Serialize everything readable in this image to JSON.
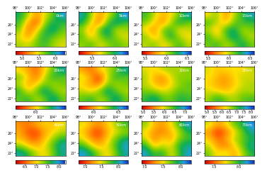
{
  "chart_data": [
    {
      "type": "heatmap",
      "title": "0km",
      "xlim": [
        98,
        106
      ],
      "ylim": [
        21.5,
        28.5
      ],
      "xticks": [
        {
          "value": 98,
          "label": "98°"
        },
        {
          "value": 100,
          "label": "100°"
        },
        {
          "value": 102,
          "label": "102°"
        },
        {
          "value": 104,
          "label": "104°"
        },
        {
          "value": 106,
          "label": "106°"
        }
      ],
      "yticks": [
        {
          "value": 22,
          "label": "22°"
        },
        {
          "value": 24,
          "label": "24°"
        },
        {
          "value": 26,
          "label": "26°"
        }
      ],
      "tick_labels": true,
      "cells": [
        [
          5.6,
          5.5,
          5.7,
          5.8,
          5.6,
          5.5
        ],
        [
          5.5,
          5.2,
          5.6,
          5.9,
          5.7,
          5.6
        ],
        [
          5.7,
          5.1,
          5.4,
          5.8,
          6.0,
          5.7
        ],
        [
          5.8,
          5.3,
          5.0,
          5.6,
          5.9,
          5.8
        ],
        [
          5.9,
          5.6,
          5.2,
          5.5,
          5.7,
          6.1
        ]
      ],
      "colorbar_range": [
        4.8,
        6.3
      ],
      "colorbar_ticks": [
        {
          "value": 5,
          "label": "5.0"
        },
        5.5,
        {
          "value": 6,
          "label": "6.0"
        }
      ]
    },
    {
      "type": "heatmap",
      "title": "5km",
      "xlim": [
        98,
        106
      ],
      "ylim": [
        21.5,
        28.5
      ],
      "xticks": [
        {
          "value": 98,
          "label": "98°"
        },
        {
          "value": 100,
          "label": "100°"
        },
        {
          "value": 102,
          "label": "102°"
        },
        {
          "value": 104,
          "label": "104°"
        },
        {
          "value": 106,
          "label": "106°"
        }
      ],
      "yticks": [
        {
          "value": 22,
          "label": "22°"
        },
        {
          "value": 24,
          "label": "24°"
        },
        {
          "value": 26,
          "label": "26°"
        }
      ],
      "tick_labels": true,
      "cells": [
        [
          5.8,
          5.9,
          5.7,
          5.8,
          5.9,
          5.8
        ],
        [
          5.9,
          5.6,
          5.8,
          6.0,
          5.8,
          5.7
        ],
        [
          5.8,
          5.5,
          5.9,
          6.1,
          5.7,
          5.8
        ],
        [
          6.0,
          5.7,
          5.4,
          5.9,
          6.1,
          5.9
        ],
        [
          6.1,
          5.8,
          5.5,
          5.7,
          5.9,
          6.2
        ]
      ],
      "colorbar_range": [
        5.2,
        6.3
      ],
      "colorbar_ticks": [
        5.5,
        {
          "value": 6,
          "label": "6.0"
        }
      ]
    },
    {
      "type": "heatmap",
      "title": "10km",
      "xlim": [
        98,
        106
      ],
      "ylim": [
        21.5,
        28.5
      ],
      "xticks": [
        {
          "value": 98,
          "label": "98°"
        },
        {
          "value": 100,
          "label": "100°"
        },
        {
          "value": 102,
          "label": "102°"
        },
        {
          "value": 104,
          "label": "104°"
        },
        {
          "value": 106,
          "label": "106°"
        }
      ],
      "yticks": [
        {
          "value": 22,
          "label": "22°"
        },
        {
          "value": 24,
          "label": "24°"
        },
        {
          "value": 26,
          "label": "26°"
        }
      ],
      "tick_labels": true,
      "cells": [
        [
          6.0,
          6.1,
          5.9,
          6.0,
          6.2,
          6.0
        ],
        [
          6.1,
          5.8,
          6.0,
          6.3,
          6.0,
          5.9
        ],
        [
          5.9,
          5.7,
          6.1,
          6.2,
          5.9,
          6.0
        ],
        [
          6.1,
          5.9,
          5.7,
          6.0,
          6.3,
          6.1
        ],
        [
          6.2,
          6.0,
          5.8,
          5.9,
          6.1,
          6.4
        ]
      ],
      "colorbar_range": [
        5.4,
        6.6
      ],
      "colorbar_ticks": [
        5.5,
        {
          "value": 6,
          "label": "6.0"
        },
        6.5
      ]
    },
    {
      "type": "heatmap",
      "title": "15km",
      "xlim": [
        98,
        106
      ],
      "ylim": [
        21.5,
        28.5
      ],
      "xticks": [
        {
          "value": 98,
          "label": "98°"
        },
        {
          "value": 100,
          "label": "100°"
        },
        {
          "value": 102,
          "label": "102°"
        },
        {
          "value": 104,
          "label": "104°"
        },
        {
          "value": 106,
          "label": "106°"
        }
      ],
      "yticks": [
        {
          "value": 22,
          "label": "22°"
        },
        {
          "value": 24,
          "label": "24°"
        },
        {
          "value": 26,
          "label": "26°"
        }
      ],
      "tick_labels": true,
      "cells": [
        [
          6.1,
          6.2,
          6.0,
          6.1,
          6.3,
          6.1
        ],
        [
          6.2,
          5.9,
          6.1,
          6.4,
          6.1,
          6.0
        ],
        [
          6.0,
          5.8,
          6.2,
          6.3,
          6.0,
          6.1
        ],
        [
          6.2,
          6.0,
          5.8,
          6.1,
          6.2,
          6.2
        ],
        [
          5.9,
          6.1,
          5.7,
          6.0,
          6.2,
          6.4
        ]
      ],
      "colorbar_range": [
        5.4,
        6.6
      ],
      "colorbar_ticks": [
        5.5,
        {
          "value": 6,
          "label": "6.0"
        },
        6.5
      ]
    },
    {
      "type": "heatmap",
      "title": "20km",
      "xlim": [
        98,
        106
      ],
      "ylim": [
        21.5,
        28.5
      ],
      "xticks": [
        {
          "value": 98,
          "label": "98°"
        },
        {
          "value": 100,
          "label": "100°"
        },
        {
          "value": 102,
          "label": "102°"
        },
        {
          "value": 104,
          "label": "104°"
        },
        {
          "value": 106,
          "label": "106°"
        }
      ],
      "yticks": [
        {
          "value": 22,
          "label": "22°"
        },
        {
          "value": 24,
          "label": "24°"
        },
        {
          "value": 26,
          "label": "26°"
        }
      ],
      "tick_labels": true,
      "cells": [
        [
          6.2,
          6.3,
          6.1,
          6.2,
          6.4,
          6.2
        ],
        [
          6.3,
          6.0,
          6.2,
          6.4,
          6.2,
          6.1
        ],
        [
          6.1,
          5.9,
          6.0,
          6.2,
          6.1,
          6.2
        ],
        [
          6.2,
          6.0,
          5.8,
          6.1,
          6.3,
          6.2
        ],
        [
          6.0,
          5.9,
          5.8,
          6.0,
          6.2,
          6.4
        ]
      ],
      "colorbar_range": [
        5.6,
        6.6
      ],
      "colorbar_ticks": [
        {
          "value": 6,
          "label": "6.0"
        }
      ]
    },
    {
      "type": "heatmap",
      "title": "25km",
      "xlim": [
        98,
        106
      ],
      "ylim": [
        21.5,
        28.5
      ],
      "xticks": [
        {
          "value": 98,
          "label": "98°"
        },
        {
          "value": 100,
          "label": "100°"
        },
        {
          "value": 102,
          "label": "102°"
        },
        {
          "value": 104,
          "label": "104°"
        },
        {
          "value": 106,
          "label": "106°"
        }
      ],
      "yticks": [
        {
          "value": 22,
          "label": "22°"
        },
        {
          "value": 24,
          "label": "24°"
        },
        {
          "value": 26,
          "label": "26°"
        }
      ],
      "tick_labels": true,
      "cells": [
        [
          6.3,
          6.4,
          6.2,
          6.3,
          6.5,
          6.3
        ],
        [
          6.2,
          6.1,
          6.3,
          6.5,
          6.3,
          6.2
        ],
        [
          6.1,
          6.0,
          5.9,
          6.3,
          6.2,
          6.3
        ],
        [
          6.2,
          6.0,
          5.8,
          6.2,
          6.4,
          6.3
        ],
        [
          6.0,
          5.9,
          6.1,
          6.2,
          6.3,
          6.5
        ]
      ],
      "colorbar_range": [
        5.7,
        6.7
      ],
      "colorbar_ticks": [
        {
          "value": 6,
          "label": "6.0"
        },
        6.5
      ]
    },
    {
      "type": "heatmap",
      "title": "30km",
      "xlim": [
        98,
        106
      ],
      "ylim": [
        21.5,
        28.5
      ],
      "xticks": [
        {
          "value": 98,
          "label": "98°"
        },
        {
          "value": 100,
          "label": "100°"
        },
        {
          "value": 102,
          "label": "102°"
        },
        {
          "value": 104,
          "label": "104°"
        },
        {
          "value": 106,
          "label": "106°"
        }
      ],
      "yticks": [
        {
          "value": 22,
          "label": "22°"
        },
        {
          "value": 24,
          "label": "24°"
        },
        {
          "value": 26,
          "label": "26°"
        }
      ],
      "tick_labels": true,
      "cells": [
        [
          6.5,
          6.8,
          6.4,
          6.3,
          6.6,
          6.5
        ],
        [
          6.3,
          6.2,
          6.0,
          6.1,
          6.4,
          6.3
        ],
        [
          6.1,
          5.8,
          5.6,
          5.9,
          6.2,
          6.4
        ],
        [
          6.2,
          5.7,
          5.5,
          6.0,
          6.3,
          6.2
        ],
        [
          6.0,
          5.9,
          6.1,
          6.2,
          6.1,
          6.3
        ]
      ],
      "colorbar_range": [
        4.9,
        7.3
      ],
      "colorbar_ticks": [
        {
          "value": 5,
          "label": "5.0"
        },
        5.5,
        {
          "value": 6,
          "label": "6.0"
        },
        6.5,
        {
          "value": 7,
          "label": "7.0"
        }
      ]
    },
    {
      "type": "heatmap",
      "title": "35km",
      "xlim": [
        98,
        106
      ],
      "ylim": [
        21.5,
        28.5
      ],
      "xticks": [
        {
          "value": 98,
          "label": "98°"
        },
        {
          "value": 100,
          "label": "100°"
        },
        {
          "value": 102,
          "label": "102°"
        },
        {
          "value": 104,
          "label": "104°"
        },
        {
          "value": 106,
          "label": "106°"
        }
      ],
      "yticks": [
        {
          "value": 22,
          "label": "22°"
        },
        {
          "value": 24,
          "label": "24°"
        },
        {
          "value": 26,
          "label": "26°"
        }
      ],
      "tick_labels": true,
      "cells": [
        [
          6.6,
          7.2,
          6.8,
          6.5,
          6.9,
          7.0
        ],
        [
          6.4,
          6.2,
          6.0,
          6.3,
          6.6,
          6.5
        ],
        [
          6.2,
          5.9,
          5.8,
          6.1,
          6.4,
          6.6
        ],
        [
          6.3,
          6.0,
          5.7,
          6.2,
          6.5,
          6.4
        ],
        [
          6.4,
          6.1,
          6.2,
          6.3,
          6.2,
          6.5
        ]
      ],
      "colorbar_range": [
        4.8,
        8.2
      ],
      "colorbar_ticks": [
        {
          "value": 5,
          "label": "5.0"
        },
        5.5,
        {
          "value": 6,
          "label": "6.0"
        },
        6.5,
        {
          "value": 7,
          "label": "7.0"
        },
        7.5,
        {
          "value": 8,
          "label": "8.0"
        }
      ]
    },
    {
      "type": "heatmap",
      "title": "40km",
      "xlim": [
        98,
        106
      ],
      "ylim": [
        21.5,
        28.5
      ],
      "xticks": [
        {
          "value": 98,
          "label": "98°"
        },
        {
          "value": 100,
          "label": "100°"
        },
        {
          "value": 102,
          "label": "102°"
        },
        {
          "value": 104,
          "label": "104°"
        },
        {
          "value": 106,
          "label": "106°"
        }
      ],
      "yticks": [
        {
          "value": 22,
          "label": "22°"
        },
        {
          "value": 24,
          "label": "24°"
        },
        {
          "value": 26,
          "label": "26°"
        }
      ],
      "tick_labels": true,
      "cells": [
        [
          7.9,
          7.6,
          7.2,
          7.0,
          7.4,
          7.8
        ],
        [
          7.3,
          7.0,
          6.8,
          7.1,
          7.5,
          7.9
        ],
        [
          6.9,
          6.6,
          6.5,
          6.9,
          7.3,
          7.6
        ],
        [
          6.8,
          6.5,
          6.4,
          6.8,
          7.0,
          7.2
        ],
        [
          6.7,
          6.6,
          6.8,
          7.0,
          6.9,
          7.1
        ]
      ],
      "colorbar_range": [
        6.1,
        8.3
      ],
      "colorbar_ticks": [
        6.5,
        {
          "value": 7,
          "label": "7.0"
        },
        7.5,
        {
          "value": 8,
          "label": "8.0"
        }
      ]
    },
    {
      "type": "heatmap",
      "title": "50km",
      "xlim": [
        98,
        106
      ],
      "ylim": [
        21.5,
        28.5
      ],
      "xticks": [
        {
          "value": 98,
          "label": "98°"
        },
        {
          "value": 100,
          "label": "100°"
        },
        {
          "value": 102,
          "label": "102°"
        },
        {
          "value": 104,
          "label": "104°"
        },
        {
          "value": 106,
          "label": "106°"
        }
      ],
      "yticks": [
        {
          "value": 22,
          "label": "22°"
        },
        {
          "value": 24,
          "label": "24°"
        },
        {
          "value": 26,
          "label": "26°"
        }
      ],
      "tick_labels": true,
      "cells": [
        [
          8.1,
          7.9,
          7.6,
          7.4,
          7.7,
          8.0
        ],
        [
          7.8,
          7.5,
          7.3,
          7.5,
          7.8,
          8.1
        ],
        [
          7.5,
          7.2,
          7.1,
          7.4,
          7.7,
          7.9
        ],
        [
          7.4,
          7.1,
          7.0,
          7.3,
          7.5,
          7.6
        ],
        [
          7.5,
          7.3,
          7.2,
          7.4,
          7.6,
          7.8
        ]
      ],
      "colorbar_range": [
        6.8,
        8.3
      ],
      "colorbar_ticks": [
        {
          "value": 7,
          "label": "7.0"
        },
        7.5,
        {
          "value": 8,
          "label": "8.0"
        }
      ]
    },
    {
      "type": "heatmap",
      "title": "60km",
      "xlim": [
        98,
        106
      ],
      "ylim": [
        21.5,
        28.5
      ],
      "xticks": [
        {
          "value": 98,
          "label": "98°"
        },
        {
          "value": 100,
          "label": "100°"
        },
        {
          "value": 102,
          "label": "102°"
        },
        {
          "value": 104,
          "label": "104°"
        },
        {
          "value": 106,
          "label": "106°"
        }
      ],
      "yticks": [
        {
          "value": 22,
          "label": "22°"
        },
        {
          "value": 24,
          "label": "24°"
        },
        {
          "value": 26,
          "label": "26°"
        }
      ],
      "tick_labels": true,
      "cells": [
        [
          8.1,
          7.8,
          7.9,
          7.5,
          7.8,
          8.1
        ],
        [
          7.9,
          7.4,
          7.6,
          7.5,
          7.9,
          8.0
        ],
        [
          7.6,
          7.2,
          7.5,
          7.3,
          7.7,
          7.8
        ],
        [
          7.5,
          7.3,
          7.2,
          7.4,
          7.6,
          7.9
        ],
        [
          7.7,
          7.4,
          7.3,
          7.5,
          7.8,
          8.1
        ]
      ],
      "colorbar_range": [
        6.9,
        8.3
      ],
      "colorbar_ticks": [
        {
          "value": 7,
          "label": "7.0"
        },
        7.5,
        {
          "value": 8,
          "label": "8.0"
        }
      ]
    },
    {
      "type": "heatmap",
      "title": "70km",
      "xlim": [
        98,
        106
      ],
      "ylim": [
        21.5,
        28.5
      ],
      "xticks": [
        {
          "value": 98,
          "label": "98°"
        },
        {
          "value": 100,
          "label": "100°"
        },
        {
          "value": 102,
          "label": "102°"
        },
        {
          "value": 104,
          "label": "104°"
        },
        {
          "value": 106,
          "label": "106°"
        }
      ],
      "yticks": [
        {
          "value": 22,
          "label": "22°"
        },
        {
          "value": 24,
          "label": "24°"
        },
        {
          "value": 26,
          "label": "26°"
        }
      ],
      "tick_labels": true,
      "cells": [
        [
          7.9,
          7.7,
          7.8,
          7.6,
          7.8,
          8.0
        ],
        [
          7.8,
          7.6,
          7.5,
          7.7,
          7.9,
          8.1
        ],
        [
          7.7,
          7.5,
          7.6,
          7.8,
          7.9,
          8.0
        ],
        [
          7.6,
          7.4,
          7.5,
          7.7,
          7.9,
          8.1
        ],
        [
          7.8,
          7.6,
          7.7,
          7.9,
          8.0,
          8.2
        ]
      ],
      "colorbar_range": [
        7.3,
        8.3
      ],
      "colorbar_ticks": [
        7.5,
        {
          "value": 8,
          "label": "8.0"
        }
      ]
    }
  ]
}
